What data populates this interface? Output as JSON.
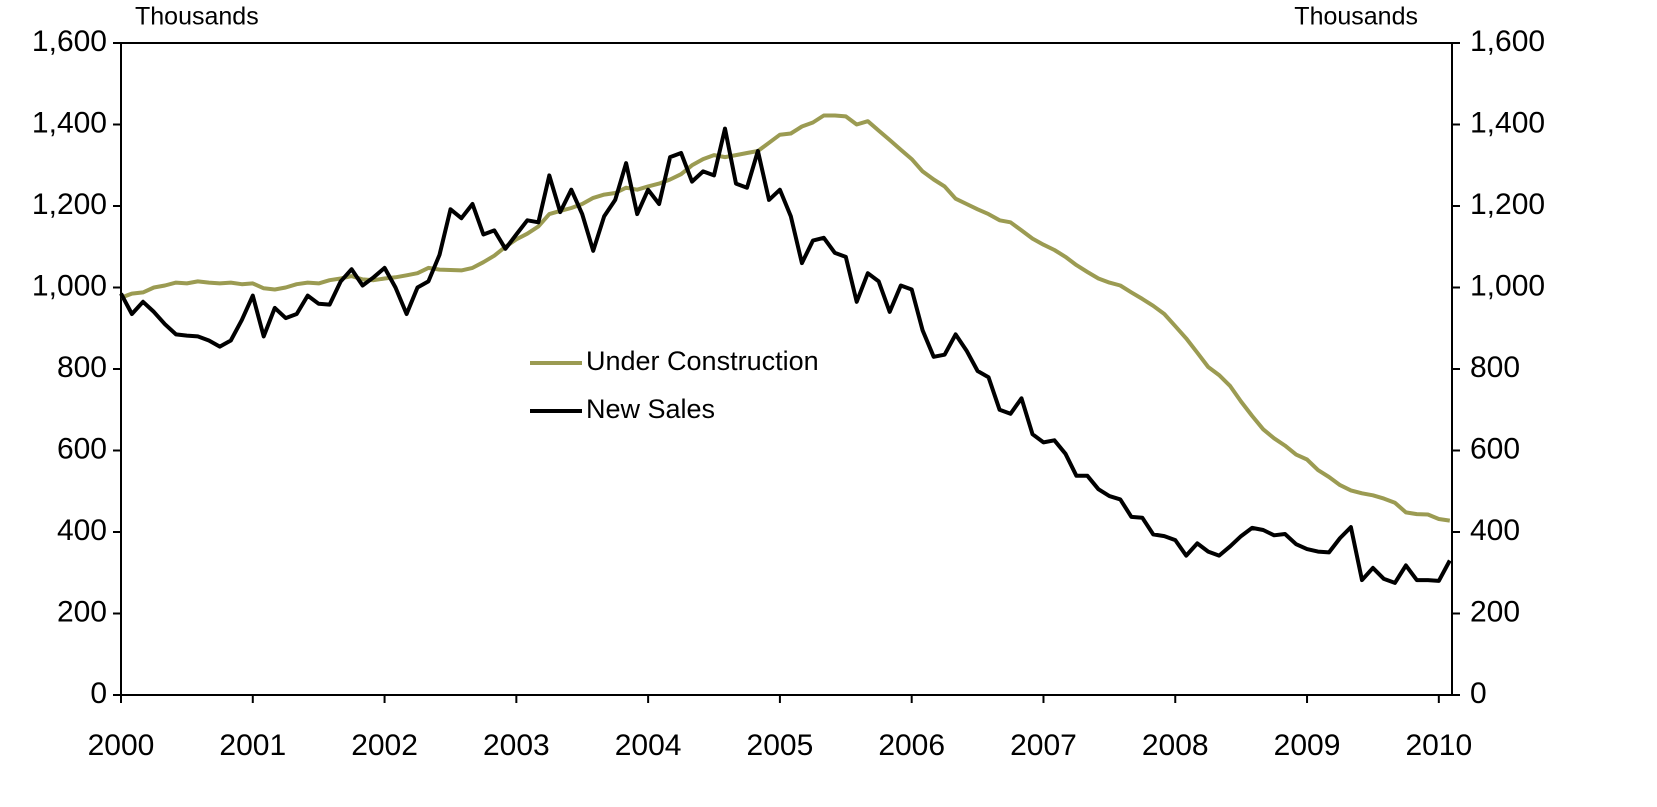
{
  "chart_data": {
    "type": "line",
    "ylabel": "Thousands",
    "y2label": "Thousands",
    "x": [
      2000,
      2000.083,
      2000.167,
      2000.25,
      2000.333,
      2000.417,
      2000.5,
      2000.583,
      2000.667,
      2000.75,
      2000.833,
      2000.917,
      2001,
      2001.083,
      2001.167,
      2001.25,
      2001.333,
      2001.417,
      2001.5,
      2001.583,
      2001.667,
      2001.75,
      2001.833,
      2001.917,
      2002,
      2002.083,
      2002.167,
      2002.25,
      2002.333,
      2002.417,
      2002.5,
      2002.583,
      2002.667,
      2002.75,
      2002.833,
      2002.917,
      2003,
      2003.083,
      2003.167,
      2003.25,
      2003.333,
      2003.417,
      2003.5,
      2003.583,
      2003.667,
      2003.75,
      2003.833,
      2003.917,
      2004,
      2004.083,
      2004.167,
      2004.25,
      2004.333,
      2004.417,
      2004.5,
      2004.583,
      2004.667,
      2004.75,
      2004.833,
      2004.917,
      2005,
      2005.083,
      2005.167,
      2005.25,
      2005.333,
      2005.417,
      2005.5,
      2005.583,
      2005.667,
      2005.75,
      2005.833,
      2005.917,
      2006,
      2006.083,
      2006.167,
      2006.25,
      2006.333,
      2006.417,
      2006.5,
      2006.583,
      2006.667,
      2006.75,
      2006.833,
      2006.917,
      2007,
      2007.083,
      2007.167,
      2007.25,
      2007.333,
      2007.417,
      2007.5,
      2007.583,
      2007.667,
      2007.75,
      2007.833,
      2007.917,
      2008,
      2008.083,
      2008.167,
      2008.25,
      2008.333,
      2008.417,
      2008.5,
      2008.583,
      2008.667,
      2008.75,
      2008.833,
      2008.917,
      2009,
      2009.083,
      2009.167,
      2009.25,
      2009.333,
      2009.417,
      2009.5,
      2009.583,
      2009.667,
      2009.75,
      2009.833,
      2009.917,
      2010,
      2010.083
    ],
    "series": [
      {
        "name": "Under Construction",
        "color": "#9b9b52",
        "values": [
          975,
          985,
          988,
          1000,
          1005,
          1012,
          1010,
          1015,
          1012,
          1010,
          1012,
          1008,
          1010,
          998,
          995,
          1000,
          1008,
          1012,
          1010,
          1018,
          1022,
          1028,
          1020,
          1018,
          1022,
          1025,
          1030,
          1035,
          1048,
          1044,
          1043,
          1042,
          1048,
          1062,
          1078,
          1100,
          1118,
          1132,
          1150,
          1180,
          1188,
          1195,
          1205,
          1220,
          1228,
          1232,
          1245,
          1240,
          1248,
          1255,
          1265,
          1278,
          1300,
          1315,
          1325,
          1320,
          1325,
          1330,
          1335,
          1355,
          1375,
          1378,
          1395,
          1405,
          1422,
          1422,
          1420,
          1400,
          1408,
          1385,
          1362,
          1338,
          1315,
          1285,
          1265,
          1248,
          1218,
          1205,
          1192,
          1180,
          1165,
          1160,
          1140,
          1120,
          1105,
          1092,
          1075,
          1055,
          1038,
          1022,
          1012,
          1005,
          988,
          972,
          955,
          935,
          905,
          875,
          840,
          805,
          785,
          758,
          720,
          685,
          652,
          630,
          612,
          590,
          578,
          552,
          535,
          515,
          502,
          495,
          490,
          482,
          472,
          448,
          444,
          443,
          432,
          428
        ]
      },
      {
        "name": "New Sales",
        "color": "#000000",
        "values": [
          985,
          935,
          965,
          940,
          910,
          885,
          882,
          880,
          870,
          855,
          870,
          920,
          980,
          880,
          950,
          925,
          935,
          980,
          960,
          958,
          1015,
          1045,
          1005,
          1025,
          1048,
          1000,
          935,
          1000,
          1015,
          1080,
          1192,
          1170,
          1205,
          1130,
          1140,
          1095,
          1130,
          1165,
          1160,
          1275,
          1185,
          1240,
          1180,
          1090,
          1175,
          1215,
          1305,
          1180,
          1240,
          1205,
          1320,
          1330,
          1260,
          1285,
          1275,
          1390,
          1255,
          1245,
          1335,
          1215,
          1240,
          1175,
          1060,
          1115,
          1122,
          1085,
          1075,
          965,
          1035,
          1015,
          940,
          1005,
          995,
          895,
          830,
          835,
          885,
          845,
          795,
          780,
          700,
          690,
          728,
          640,
          620,
          625,
          592,
          538,
          538,
          505,
          488,
          480,
          437,
          435,
          394,
          390,
          380,
          342,
          372,
          352,
          342,
          365,
          390,
          410,
          405,
          392,
          395,
          370,
          358,
          352,
          350,
          385,
          412,
          282,
          312,
          285,
          275,
          318,
          282,
          282,
          280,
          330
        ]
      }
    ],
    "xlim": [
      2000,
      2010.1
    ],
    "xticks": [
      2000,
      2001,
      2002,
      2003,
      2004,
      2005,
      2006,
      2007,
      2008,
      2009,
      2010
    ],
    "ylim": [
      0,
      1600
    ],
    "yticks": [
      0,
      200,
      400,
      600,
      800,
      {
        "value": 1000,
        "label": "1,000"
      },
      {
        "value": 1200,
        "label": "1,200"
      },
      {
        "value": 1400,
        "label": "1,400"
      },
      {
        "value": 1600,
        "label": "1,600"
      }
    ],
    "y2lim": [
      0,
      1600
    ],
    "y2ticks": [
      0,
      200,
      400,
      600,
      800,
      {
        "value": 1000,
        "label": "1,000"
      },
      {
        "value": 1200,
        "label": "1,200"
      },
      {
        "value": 1400,
        "label": "1,400"
      },
      {
        "value": 1600,
        "label": "1,600"
      }
    ],
    "grid": false,
    "legend": "center"
  }
}
